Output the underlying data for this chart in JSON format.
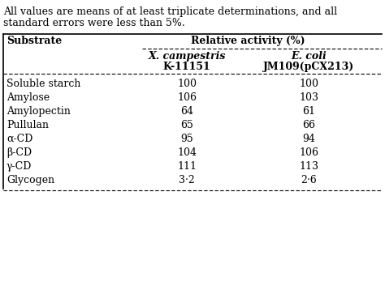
{
  "caption_line1": "All values are means of at least triplicate determinations, and all",
  "caption_line2": "standard errors were less than 5%.",
  "col_header_main": "Relative activity (%)",
  "col1_header_line1": "X. campestris",
  "col1_header_line2": "K-11151",
  "col2_header_line1": "E. coli",
  "col2_header_line2": "JM109(pCX213)",
  "row_header": "Substrate",
  "substrates": [
    "Soluble starch",
    "Amylose",
    "Amylopectin",
    "Pullulan",
    "α-CD",
    "β-CD",
    "γ-CD",
    "Glycogen"
  ],
  "col1_values": [
    "100",
    "106",
    "64",
    "65",
    "95",
    "104",
    "111",
    "3·2"
  ],
  "col2_values": [
    "100",
    "103",
    "61",
    "66",
    "94",
    "106",
    "113",
    "2·6"
  ],
  "bg_color": "#ffffff",
  "text_color": "#000000",
  "font_size": 9.0,
  "header_font_size": 9.0
}
